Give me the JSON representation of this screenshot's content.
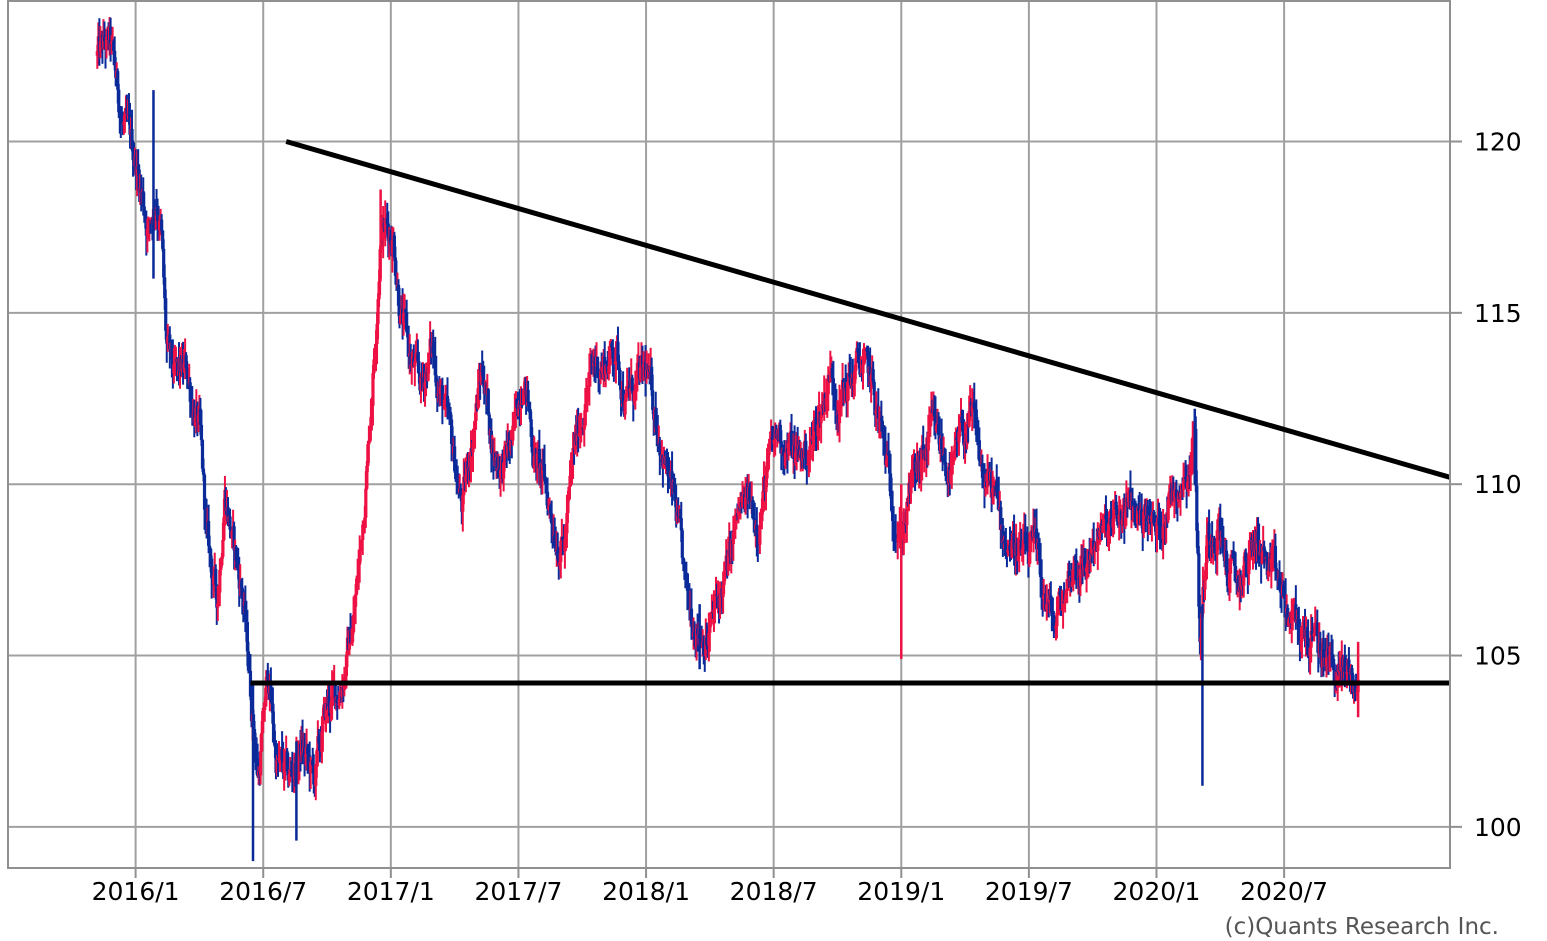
{
  "chart_data": {
    "type": "candlestick",
    "title": "",
    "xlabel": "",
    "ylabel": "",
    "ylim": [
      98.8,
      124.1
    ],
    "y_ticks": [
      100,
      105,
      110,
      115,
      120
    ],
    "x_ticks": [
      {
        "label": "2016/1",
        "x": 2016.0
      },
      {
        "label": "2016/7",
        "x": 2016.5
      },
      {
        "label": "2017/1",
        "x": 2017.0
      },
      {
        "label": "2017/7",
        "x": 2017.5
      },
      {
        "label": "2018/1",
        "x": 2018.0
      },
      {
        "label": "2018/7",
        "x": 2018.5
      },
      {
        "label": "2019/1",
        "x": 2019.0
      },
      {
        "label": "2019/7",
        "x": 2019.5
      },
      {
        "label": "2020/1",
        "x": 2020.0
      },
      {
        "label": "2020/7",
        "x": 2020.5
      }
    ],
    "xlim": [
      2015.5,
      2021.15
    ],
    "grid": true,
    "colors": {
      "up": "#ee1144",
      "down": "#0a2a9a",
      "trendline": "#000000",
      "grid": "#a0a0a0",
      "frame": "#909090"
    },
    "price_path": [
      [
        2015.85,
        122.5
      ],
      [
        2015.9,
        122.8
      ],
      [
        2015.95,
        120.5
      ],
      [
        2016.0,
        119.5
      ],
      [
        2016.05,
        117.5
      ],
      [
        2016.08,
        118.5
      ],
      [
        2016.1,
        117.5
      ],
      [
        2016.12,
        114.0
      ],
      [
        2016.15,
        113.0
      ],
      [
        2016.2,
        113.3
      ],
      [
        2016.25,
        111.5
      ],
      [
        2016.28,
        108.3
      ],
      [
        2016.32,
        106.5
      ],
      [
        2016.35,
        110.0
      ],
      [
        2016.38,
        108.3
      ],
      [
        2016.42,
        106.8
      ],
      [
        2016.45,
        104.0
      ],
      [
        2016.48,
        101.5
      ],
      [
        2016.52,
        104.5
      ],
      [
        2016.55,
        102.0
      ],
      [
        2016.6,
        101.3
      ],
      [
        2016.65,
        102.3
      ],
      [
        2016.7,
        101.3
      ],
      [
        2016.75,
        103.5
      ],
      [
        2016.8,
        104.0
      ],
      [
        2016.85,
        105.8
      ],
      [
        2016.88,
        108.0
      ],
      [
        2016.91,
        111.0
      ],
      [
        2016.94,
        114.5
      ],
      [
        2016.96,
        117.5
      ],
      [
        2016.98,
        117.5
      ],
      [
        2017.01,
        117.3
      ],
      [
        2017.04,
        115.0
      ],
      [
        2017.08,
        113.5
      ],
      [
        2017.12,
        112.8
      ],
      [
        2017.16,
        114.0
      ],
      [
        2017.2,
        112.5
      ],
      [
        2017.24,
        111.0
      ],
      [
        2017.28,
        109.3
      ],
      [
        2017.32,
        111.5
      ],
      [
        2017.36,
        113.5
      ],
      [
        2017.4,
        111.0
      ],
      [
        2017.44,
        110.5
      ],
      [
        2017.48,
        111.3
      ],
      [
        2017.52,
        113.5
      ],
      [
        2017.56,
        111.0
      ],
      [
        2017.6,
        110.0
      ],
      [
        2017.64,
        108.8
      ],
      [
        2017.68,
        108.2
      ],
      [
        2017.72,
        111.0
      ],
      [
        2017.76,
        112.5
      ],
      [
        2017.8,
        113.5
      ],
      [
        2017.84,
        113.5
      ],
      [
        2017.88,
        114.0
      ],
      [
        2017.92,
        112.5
      ],
      [
        2017.96,
        112.8
      ],
      [
        2018.0,
        113.2
      ],
      [
        2018.04,
        112.0
      ],
      [
        2018.08,
        110.5
      ],
      [
        2018.12,
        109.0
      ],
      [
        2018.16,
        106.5
      ],
      [
        2018.2,
        106.0
      ],
      [
        2018.24,
        105.5
      ],
      [
        2018.28,
        106.5
      ],
      [
        2018.32,
        107.5
      ],
      [
        2018.36,
        109.0
      ],
      [
        2018.4,
        109.5
      ],
      [
        2018.44,
        109.0
      ],
      [
        2018.48,
        110.5
      ],
      [
        2018.52,
        111.5
      ],
      [
        2018.56,
        111.0
      ],
      [
        2018.6,
        110.8
      ],
      [
        2018.64,
        111.0
      ],
      [
        2018.68,
        112.0
      ],
      [
        2018.72,
        113.3
      ],
      [
        2018.76,
        112.5
      ],
      [
        2018.8,
        113.0
      ],
      [
        2018.84,
        113.5
      ],
      [
        2018.88,
        113.0
      ],
      [
        2018.92,
        111.5
      ],
      [
        2018.96,
        109.8
      ],
      [
        2019.0,
        108.5
      ],
      [
        2019.04,
        110.0
      ],
      [
        2019.08,
        110.5
      ],
      [
        2019.12,
        111.5
      ],
      [
        2019.16,
        111.0
      ],
      [
        2019.2,
        110.2
      ],
      [
        2019.24,
        111.5
      ],
      [
        2019.28,
        111.8
      ],
      [
        2019.32,
        110.2
      ],
      [
        2019.36,
        109.8
      ],
      [
        2019.4,
        108.5
      ],
      [
        2019.44,
        108.3
      ],
      [
        2019.48,
        107.8
      ],
      [
        2019.52,
        108.0
      ],
      [
        2019.56,
        106.8
      ],
      [
        2019.6,
        105.8
      ],
      [
        2019.64,
        106.8
      ],
      [
        2019.68,
        107.8
      ],
      [
        2019.72,
        107.5
      ],
      [
        2019.76,
        108.5
      ],
      [
        2019.8,
        108.5
      ],
      [
        2019.84,
        108.8
      ],
      [
        2019.88,
        109.2
      ],
      [
        2019.92,
        109.2
      ],
      [
        2019.96,
        109.2
      ],
      [
        2020.0,
        108.5
      ],
      [
        2020.04,
        109.5
      ],
      [
        2020.08,
        110.0
      ],
      [
        2020.12,
        110.5
      ],
      [
        2020.15,
        111.5
      ],
      [
        2020.17,
        105.5
      ],
      [
        2020.2,
        108.5
      ],
      [
        2020.24,
        109.0
      ],
      [
        2020.28,
        107.5
      ],
      [
        2020.32,
        107.0
      ],
      [
        2020.36,
        107.8
      ],
      [
        2020.4,
        108.5
      ],
      [
        2020.44,
        107.3
      ],
      [
        2020.48,
        107.0
      ],
      [
        2020.52,
        106.0
      ],
      [
        2020.56,
        105.8
      ],
      [
        2020.6,
        105.5
      ],
      [
        2020.64,
        105.2
      ],
      [
        2020.68,
        104.8
      ],
      [
        2020.72,
        104.5
      ],
      [
        2020.76,
        104.4
      ],
      [
        2020.79,
        104.0
      ]
    ],
    "notable_extremes": [
      {
        "x": 2016.07,
        "high": 121.5,
        "low": 116.0
      },
      {
        "x": 2016.46,
        "high": 104.2,
        "low": 99.0
      },
      {
        "x": 2016.63,
        "high": 102.5,
        "low": 99.6
      },
      {
        "x": 2016.96,
        "high": 118.6,
        "low": 116.0
      },
      {
        "x": 2018.21,
        "high": 106.5,
        "low": 104.6
      },
      {
        "x": 2019.0,
        "high": 110.0,
        "low": 104.9
      },
      {
        "x": 2020.15,
        "high": 112.2,
        "low": 110.0
      },
      {
        "x": 2020.18,
        "high": 106.5,
        "low": 101.2
      },
      {
        "x": 2020.79,
        "high": 105.4,
        "low": 103.2
      }
    ],
    "trendlines": [
      {
        "x1": 2016.59,
        "y1": 120.0,
        "x2": 2021.15,
        "y2": 110.2
      },
      {
        "x1": 2016.45,
        "y1": 104.2,
        "x2": 2021.15,
        "y2": 104.2
      }
    ]
  },
  "credit": "(c)Quants Research Inc."
}
